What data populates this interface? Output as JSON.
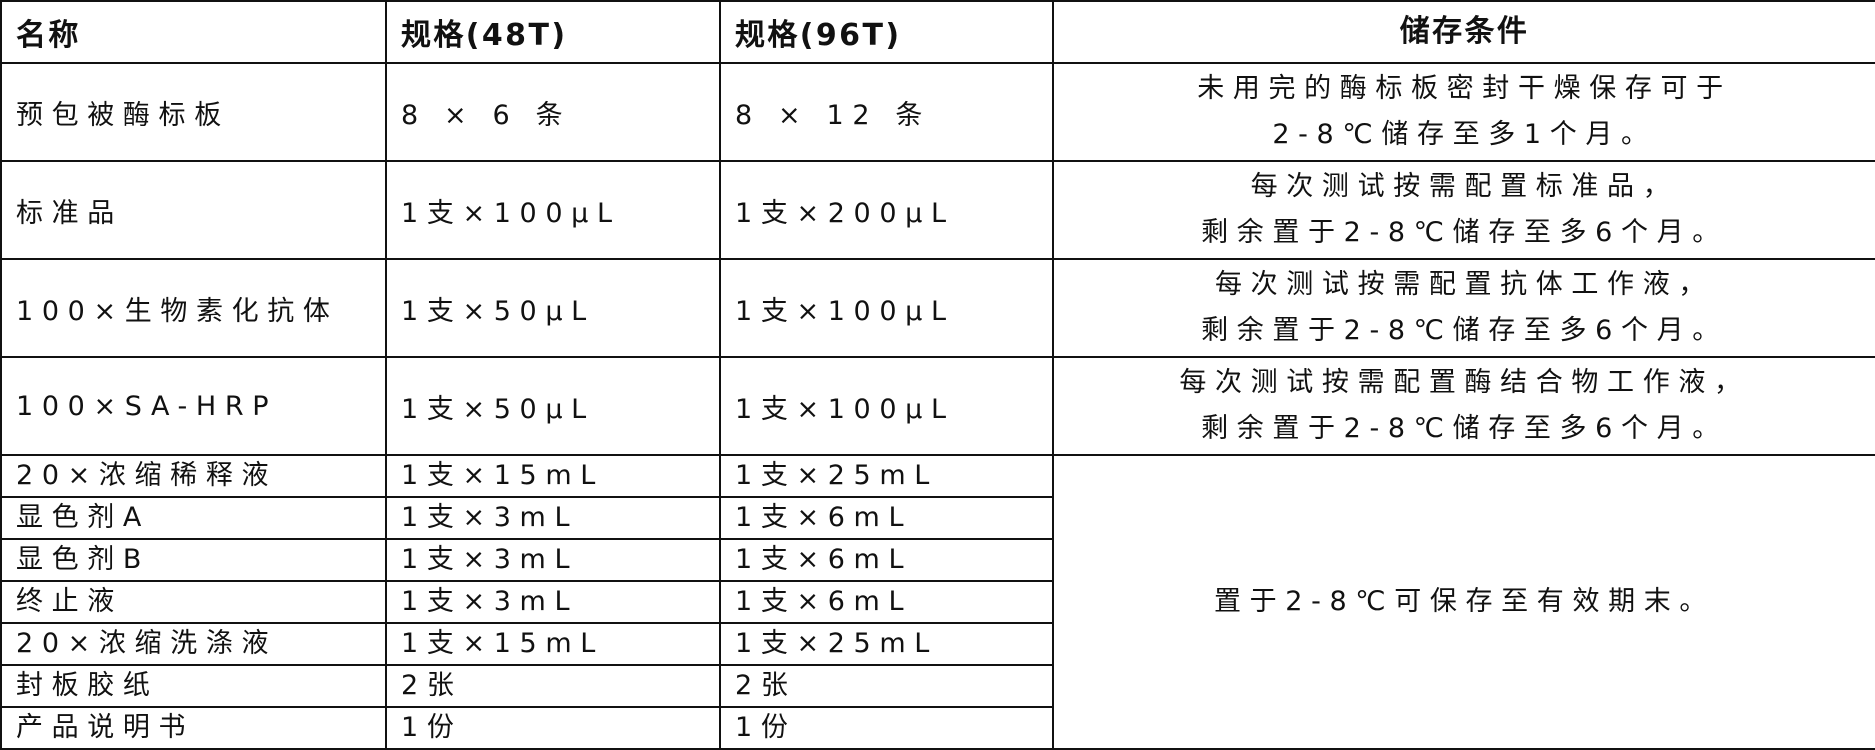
{
  "header": {
    "name": "名称",
    "spec48": "规格(48T)",
    "spec96": "规格(96T)",
    "storage": "储存条件"
  },
  "rows_big": [
    {
      "name": "预包被酶标板",
      "spec48": "8 × 6 条",
      "spec96": "8 × 12 条",
      "storage": [
        "未用完的酶标板密封干燥保存可于",
        "2-8℃储存至多1个月。"
      ]
    },
    {
      "name": "标准品",
      "spec48": "1支×100μL",
      "spec96": "1支×200μL",
      "storage": [
        "每次测试按需配置标准品，",
        "剩余置于2-8℃储存至多6个月。"
      ]
    },
    {
      "name": "100×生物素化抗体",
      "spec48": "1支×50μL",
      "spec96": "1支×100μL",
      "storage": [
        "每次测试按需配置抗体工作液，",
        "剩余置于2-8℃储存至多6个月。"
      ]
    },
    {
      "name": "100×SA-HRP",
      "spec48": "1支×50μL",
      "spec96": "1支×100μL",
      "storage": [
        "每次测试按需配置酶结合物工作液，",
        "剩余置于2-8℃储存至多6个月。"
      ]
    }
  ],
  "rows_small": [
    {
      "name": "20×浓缩稀释液",
      "spec48": "1支×15mL",
      "spec96": "1支×25mL"
    },
    {
      "name": "显色剂A",
      "spec48": "1支×3mL",
      "spec96": "1支×6mL"
    },
    {
      "name": "显色剂B",
      "spec48": "1支×3mL",
      "spec96": "1支×6mL"
    },
    {
      "name": "终止液",
      "spec48": "1支×3mL",
      "spec96": "1支×6mL"
    },
    {
      "name": "20×浓缩洗涤液",
      "spec48": "1支×15mL",
      "spec96": "1支×25mL"
    },
    {
      "name": "封板胶纸",
      "spec48": "2张",
      "spec96": "2张"
    },
    {
      "name": "产品说明书",
      "spec48": "1份",
      "spec96": "1份"
    }
  ],
  "shared_storage": "置于2-8℃可保存至有效期末。"
}
